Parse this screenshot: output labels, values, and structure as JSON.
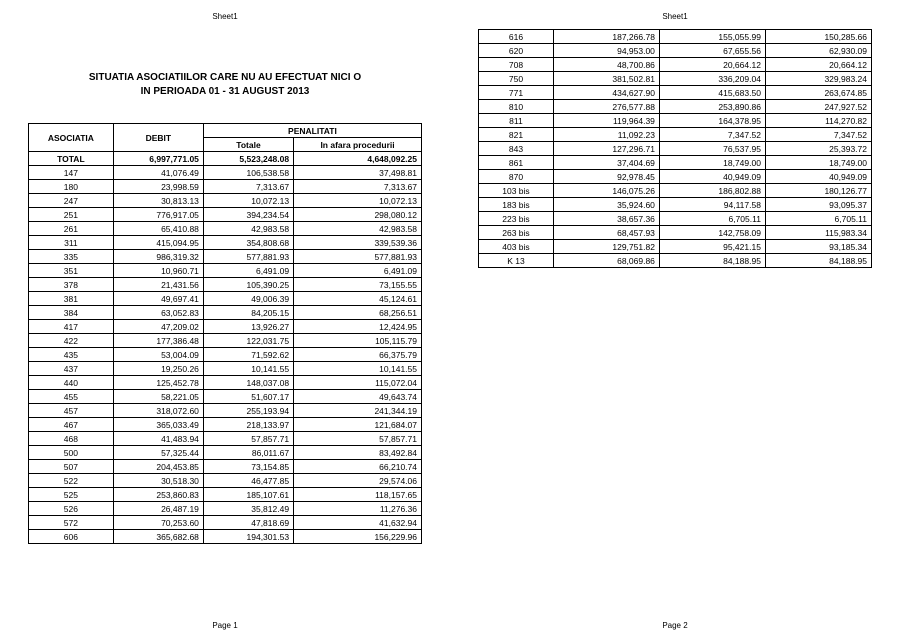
{
  "sheet_label": "Sheet1",
  "page1_footer": "Page 1",
  "page2_footer": "Page 2",
  "title_line1": "SITUATIA ASOCIATIILOR CARE NU AU EFECTUAT NICI O",
  "title_line2": "IN PERIOADA 01 - 31 AUGUST 2013",
  "headers": {
    "asociatia": "ASOCIATIA",
    "debit": "DEBIT",
    "penalitati": "PENALITATI",
    "totale": "Totale",
    "in_afara": "In afara procedurii"
  },
  "total_row": {
    "label": "TOTAL",
    "debit": "6,997,771.05",
    "totale": "5,523,248.08",
    "afara": "4,648,092.25"
  },
  "rows_page1": [
    {
      "c": "147",
      "d": "41,076.49",
      "t": "106,538.58",
      "a": "37,498.81"
    },
    {
      "c": "180",
      "d": "23,998.59",
      "t": "7,313.67",
      "a": "7,313.67"
    },
    {
      "c": "247",
      "d": "30,813.13",
      "t": "10,072.13",
      "a": "10,072.13"
    },
    {
      "c": "251",
      "d": "776,917.05",
      "t": "394,234.54",
      "a": "298,080.12"
    },
    {
      "c": "261",
      "d": "65,410.88",
      "t": "42,983.58",
      "a": "42,983.58"
    },
    {
      "c": "311",
      "d": "415,094.95",
      "t": "354,808.68",
      "a": "339,539.36"
    },
    {
      "c": "335",
      "d": "986,319.32",
      "t": "577,881.93",
      "a": "577,881.93"
    },
    {
      "c": "351",
      "d": "10,960.71",
      "t": "6,491.09",
      "a": "6,491.09"
    },
    {
      "c": "378",
      "d": "21,431.56",
      "t": "105,390.25",
      "a": "73,155.55"
    },
    {
      "c": "381",
      "d": "49,697.41",
      "t": "49,006.39",
      "a": "45,124.61"
    },
    {
      "c": "384",
      "d": "63,052.83",
      "t": "84,205.15",
      "a": "68,256.51"
    },
    {
      "c": "417",
      "d": "47,209.02",
      "t": "13,926.27",
      "a": "12,424.95"
    },
    {
      "c": "422",
      "d": "177,386.48",
      "t": "122,031.75",
      "a": "105,115.79"
    },
    {
      "c": "435",
      "d": "53,004.09",
      "t": "71,592.62",
      "a": "66,375.79"
    },
    {
      "c": "437",
      "d": "19,250.26",
      "t": "10,141.55",
      "a": "10,141.55"
    },
    {
      "c": "440",
      "d": "125,452.78",
      "t": "148,037.08",
      "a": "115,072.04"
    },
    {
      "c": "455",
      "d": "58,221.05",
      "t": "51,607.17",
      "a": "49,643.74"
    },
    {
      "c": "457",
      "d": "318,072.60",
      "t": "255,193.94",
      "a": "241,344.19"
    },
    {
      "c": "467",
      "d": "365,033.49",
      "t": "218,133.97",
      "a": "121,684.07"
    },
    {
      "c": "468",
      "d": "41,483.94",
      "t": "57,857.71",
      "a": "57,857.71"
    },
    {
      "c": "500",
      "d": "57,325.44",
      "t": "86,011.67",
      "a": "83,492.84"
    },
    {
      "c": "507",
      "d": "204,453.85",
      "t": "73,154.85",
      "a": "66,210.74"
    },
    {
      "c": "522",
      "d": "30,518.30",
      "t": "46,477.85",
      "a": "29,574.06"
    },
    {
      "c": "525",
      "d": "253,860.83",
      "t": "185,107.61",
      "a": "118,157.65"
    },
    {
      "c": "526",
      "d": "26,487.19",
      "t": "35,812.49",
      "a": "11,276.36"
    },
    {
      "c": "572",
      "d": "70,253.60",
      "t": "47,818.69",
      "a": "41,632.94"
    },
    {
      "c": "606",
      "d": "365,682.68",
      "t": "194,301.53",
      "a": "156,229.96"
    }
  ],
  "rows_page2": [
    {
      "c": "616",
      "d": "187,266.78",
      "t": "155,055.99",
      "a": "150,285.66"
    },
    {
      "c": "620",
      "d": "94,953.00",
      "t": "67,655.56",
      "a": "62,930.09"
    },
    {
      "c": "708",
      "d": "48,700.86",
      "t": "20,664.12",
      "a": "20,664.12"
    },
    {
      "c": "750",
      "d": "381,502.81",
      "t": "336,209.04",
      "a": "329,983.24"
    },
    {
      "c": "771",
      "d": "434,627.90",
      "t": "415,683.50",
      "a": "263,674.85"
    },
    {
      "c": "810",
      "d": "276,577.88",
      "t": "253,890.86",
      "a": "247,927.52"
    },
    {
      "c": "811",
      "d": "119,964.39",
      "t": "164,378.95",
      "a": "114,270.82"
    },
    {
      "c": "821",
      "d": "11,092.23",
      "t": "7,347.52",
      "a": "7,347.52"
    },
    {
      "c": "843",
      "d": "127,296.71",
      "t": "76,537.95",
      "a": "25,393.72"
    },
    {
      "c": "861",
      "d": "37,404.69",
      "t": "18,749.00",
      "a": "18,749.00"
    },
    {
      "c": "870",
      "d": "92,978.45",
      "t": "40,949.09",
      "a": "40,949.09"
    },
    {
      "c": "103 bis",
      "d": "146,075.26",
      "t": "186,802.88",
      "a": "180,126.77"
    },
    {
      "c": "183 bis",
      "d": "35,924.60",
      "t": "94,117.58",
      "a": "93,095.37"
    },
    {
      "c": "223 bis",
      "d": "38,657.36",
      "t": "6,705.11",
      "a": "6,705.11"
    },
    {
      "c": "263 bis",
      "d": "68,457.93",
      "t": "142,758.09",
      "a": "115,983.34"
    },
    {
      "c": "403 bis",
      "d": "129,751.82",
      "t": "95,421.15",
      "a": "93,185.34"
    },
    {
      "c": "K 13",
      "d": "68,069.86",
      "t": "84,188.95",
      "a": "84,188.95"
    }
  ]
}
